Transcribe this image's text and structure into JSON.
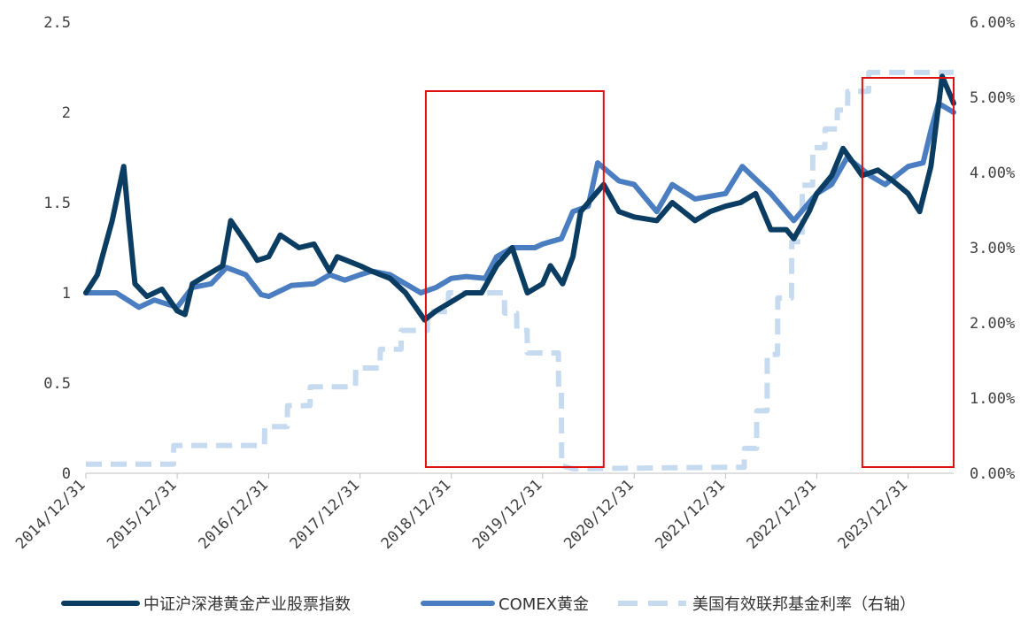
{
  "chart_data": {
    "type": "line",
    "title": "",
    "xlabel": "",
    "ylabel": "",
    "x_tick_labels": [
      "2014/12/31",
      "2015/12/31",
      "2016/12/31",
      "2017/12/31",
      "2018/12/31",
      "2019/12/31",
      "2020/12/31",
      "2021/12/31",
      "2022/12/31",
      "2023/12/31"
    ],
    "x_range": [
      "2014-12-31",
      "2024-06-30"
    ],
    "y_left": {
      "ylim": [
        0,
        2.5
      ],
      "ticks": [
        "0",
        "0.5",
        "1",
        "1.5",
        "2",
        "2.5"
      ]
    },
    "y_right": {
      "ylim": [
        0,
        6.0
      ],
      "ticks": [
        "0.00%",
        "1.00%",
        "2.00%",
        "3.00%",
        "4.00%",
        "5.00%",
        "6.00%"
      ]
    },
    "grid": false,
    "legend_position": "bottom",
    "series": [
      {
        "name": "中证沪深港黄金产业股票指数",
        "axis": "left",
        "color": "#0b3d63",
        "points": [
          [
            "2014-12-31",
            1.0
          ],
          [
            "2015-02-15",
            1.1
          ],
          [
            "2015-04-15",
            1.4
          ],
          [
            "2015-05-31",
            1.7
          ],
          [
            "2015-06-20",
            1.4
          ],
          [
            "2015-07-15",
            1.05
          ],
          [
            "2015-09-01",
            0.98
          ],
          [
            "2015-10-31",
            1.02
          ],
          [
            "2015-12-31",
            0.9
          ],
          [
            "2016-01-31",
            0.88
          ],
          [
            "2016-03-01",
            1.05
          ],
          [
            "2016-04-30",
            1.1
          ],
          [
            "2016-06-30",
            1.15
          ],
          [
            "2016-08-01",
            1.4
          ],
          [
            "2016-09-30",
            1.28
          ],
          [
            "2016-11-15",
            1.18
          ],
          [
            "2016-12-31",
            1.2
          ],
          [
            "2017-02-15",
            1.32
          ],
          [
            "2017-05-01",
            1.25
          ],
          [
            "2017-06-30",
            1.27
          ],
          [
            "2017-08-31",
            1.12
          ],
          [
            "2017-10-01",
            1.2
          ],
          [
            "2017-12-31",
            1.15
          ],
          [
            "2018-02-15",
            1.12
          ],
          [
            "2018-04-30",
            1.08
          ],
          [
            "2018-07-01",
            1.0
          ],
          [
            "2018-09-15",
            0.85
          ],
          [
            "2018-10-31",
            0.9
          ],
          [
            "2018-12-31",
            0.95
          ],
          [
            "2019-02-28",
            1.0
          ],
          [
            "2019-05-01",
            1.0
          ],
          [
            "2019-06-30",
            1.15
          ],
          [
            "2019-08-31",
            1.25
          ],
          [
            "2019-10-31",
            1.0
          ],
          [
            "2019-12-31",
            1.05
          ],
          [
            "2020-01-31",
            1.15
          ],
          [
            "2020-03-20",
            1.05
          ],
          [
            "2020-04-30",
            1.2
          ],
          [
            "2020-05-31",
            1.45
          ],
          [
            "2020-07-31",
            1.55
          ],
          [
            "2020-08-31",
            1.6
          ],
          [
            "2020-10-31",
            1.45
          ],
          [
            "2020-12-31",
            1.42
          ],
          [
            "2021-03-31",
            1.4
          ],
          [
            "2021-06-01",
            1.5
          ],
          [
            "2021-08-31",
            1.4
          ],
          [
            "2021-10-31",
            1.45
          ],
          [
            "2021-12-31",
            1.48
          ],
          [
            "2022-03-01",
            1.5
          ],
          [
            "2022-04-30",
            1.55
          ],
          [
            "2022-06-30",
            1.35
          ],
          [
            "2022-08-31",
            1.35
          ],
          [
            "2022-09-30",
            1.3
          ],
          [
            "2022-11-30",
            1.45
          ],
          [
            "2022-12-31",
            1.55
          ],
          [
            "2023-03-01",
            1.65
          ],
          [
            "2023-04-15",
            1.8
          ],
          [
            "2023-06-30",
            1.65
          ],
          [
            "2023-09-01",
            1.68
          ],
          [
            "2023-10-31",
            1.62
          ],
          [
            "2023-12-31",
            1.55
          ],
          [
            "2024-02-15",
            1.45
          ],
          [
            "2024-03-31",
            1.7
          ],
          [
            "2024-05-15",
            2.2
          ],
          [
            "2024-06-30",
            2.05
          ]
        ]
      },
      {
        "name": "COMEX黄金",
        "axis": "left",
        "color": "#4a7ec0",
        "points": [
          [
            "2014-12-31",
            1.0
          ],
          [
            "2015-03-01",
            1.0
          ],
          [
            "2015-05-01",
            1.0
          ],
          [
            "2015-07-31",
            0.92
          ],
          [
            "2015-10-01",
            0.96
          ],
          [
            "2015-12-31",
            0.92
          ],
          [
            "2016-03-01",
            1.03
          ],
          [
            "2016-05-15",
            1.05
          ],
          [
            "2016-07-15",
            1.14
          ],
          [
            "2016-09-30",
            1.1
          ],
          [
            "2016-11-30",
            0.99
          ],
          [
            "2016-12-31",
            0.98
          ],
          [
            "2017-03-31",
            1.04
          ],
          [
            "2017-06-30",
            1.05
          ],
          [
            "2017-09-01",
            1.1
          ],
          [
            "2017-10-31",
            1.07
          ],
          [
            "2017-12-31",
            1.1
          ],
          [
            "2018-02-15",
            1.12
          ],
          [
            "2018-04-30",
            1.1
          ],
          [
            "2018-08-31",
            1.0
          ],
          [
            "2018-10-31",
            1.03
          ],
          [
            "2018-12-31",
            1.08
          ],
          [
            "2019-03-01",
            1.09
          ],
          [
            "2019-05-15",
            1.08
          ],
          [
            "2019-06-30",
            1.2
          ],
          [
            "2019-09-01",
            1.25
          ],
          [
            "2019-11-30",
            1.25
          ],
          [
            "2019-12-31",
            1.27
          ],
          [
            "2020-03-15",
            1.3
          ],
          [
            "2020-04-30",
            1.45
          ],
          [
            "2020-06-30",
            1.48
          ],
          [
            "2020-08-07",
            1.72
          ],
          [
            "2020-10-31",
            1.62
          ],
          [
            "2020-12-31",
            1.6
          ],
          [
            "2021-03-31",
            1.45
          ],
          [
            "2021-06-01",
            1.6
          ],
          [
            "2021-08-31",
            1.52
          ],
          [
            "2021-12-31",
            1.55
          ],
          [
            "2022-03-08",
            1.7
          ],
          [
            "2022-06-30",
            1.55
          ],
          [
            "2022-09-30",
            1.4
          ],
          [
            "2022-11-30",
            1.5
          ],
          [
            "2022-12-31",
            1.55
          ],
          [
            "2023-02-28",
            1.6
          ],
          [
            "2023-05-01",
            1.75
          ],
          [
            "2023-07-31",
            1.65
          ],
          [
            "2023-09-30",
            1.6
          ],
          [
            "2023-12-31",
            1.7
          ],
          [
            "2024-02-29",
            1.72
          ],
          [
            "2024-03-31",
            1.9
          ],
          [
            "2024-04-30",
            2.05
          ],
          [
            "2024-06-30",
            2.0
          ]
        ]
      },
      {
        "name": "美国有效联邦基金利率（右轴）",
        "axis": "right",
        "color": "#c6dbef",
        "points": [
          [
            "2014-12-31",
            0.12
          ],
          [
            "2015-12-16",
            0.12
          ],
          [
            "2015-12-17",
            0.37
          ],
          [
            "2016-12-14",
            0.37
          ],
          [
            "2016-12-15",
            0.62
          ],
          [
            "2017-03-15",
            0.62
          ],
          [
            "2017-03-16",
            0.9
          ],
          [
            "2017-06-14",
            0.9
          ],
          [
            "2017-06-15",
            1.15
          ],
          [
            "2017-12-13",
            1.15
          ],
          [
            "2017-12-14",
            1.4
          ],
          [
            "2018-03-21",
            1.4
          ],
          [
            "2018-03-22",
            1.65
          ],
          [
            "2018-06-13",
            1.65
          ],
          [
            "2018-06-14",
            1.9
          ],
          [
            "2018-09-26",
            1.9
          ],
          [
            "2018-09-27",
            2.15
          ],
          [
            "2018-12-19",
            2.15
          ],
          [
            "2018-12-20",
            2.4
          ],
          [
            "2019-07-31",
            2.4
          ],
          [
            "2019-08-01",
            2.13
          ],
          [
            "2019-09-18",
            2.13
          ],
          [
            "2019-09-19",
            1.9
          ],
          [
            "2019-10-30",
            1.9
          ],
          [
            "2019-10-31",
            1.6
          ],
          [
            "2020-03-03",
            1.6
          ],
          [
            "2020-03-04",
            1.1
          ],
          [
            "2020-03-15",
            1.1
          ],
          [
            "2020-03-16",
            0.1
          ],
          [
            "2020-05-01",
            0.06
          ],
          [
            "2021-12-31",
            0.08
          ],
          [
            "2022-03-16",
            0.08
          ],
          [
            "2022-03-17",
            0.33
          ],
          [
            "2022-05-04",
            0.33
          ],
          [
            "2022-05-05",
            0.83
          ],
          [
            "2022-06-15",
            0.83
          ],
          [
            "2022-06-16",
            1.58
          ],
          [
            "2022-07-27",
            1.58
          ],
          [
            "2022-07-28",
            2.33
          ],
          [
            "2022-09-21",
            2.33
          ],
          [
            "2022-09-22",
            3.08
          ],
          [
            "2022-11-02",
            3.08
          ],
          [
            "2022-11-03",
            3.83
          ],
          [
            "2022-12-14",
            3.83
          ],
          [
            "2022-12-15",
            4.33
          ],
          [
            "2023-02-01",
            4.33
          ],
          [
            "2023-02-02",
            4.58
          ],
          [
            "2023-03-22",
            4.58
          ],
          [
            "2023-03-23",
            4.83
          ],
          [
            "2023-05-03",
            4.83
          ],
          [
            "2023-05-04",
            5.08
          ],
          [
            "2023-07-26",
            5.08
          ],
          [
            "2023-07-27",
            5.33
          ],
          [
            "2024-06-30",
            5.33
          ]
        ]
      }
    ],
    "highlight_regions": [
      {
        "from": "2018-09-20",
        "to": "2020-08-31",
        "color": "#e01010"
      },
      {
        "from": "2023-07-01",
        "to": "2024-06-30",
        "color": "#e01010"
      }
    ]
  }
}
